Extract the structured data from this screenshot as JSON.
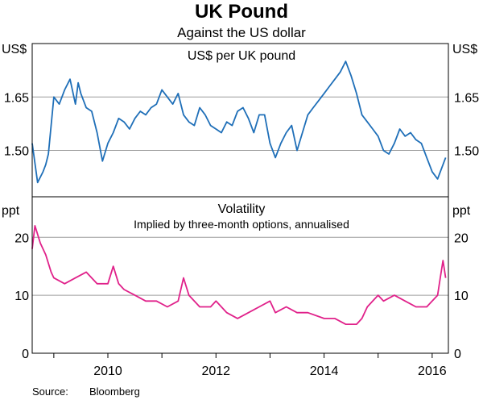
{
  "title": "UK Pound",
  "subtitle": "Against the US dollar",
  "source_label": "Source:",
  "source_value": "Bloomberg",
  "colors": {
    "top_series": "#1f6fb8",
    "bottom_series": "#e0218a",
    "grid": "#9e9e9e"
  },
  "chart_data": [
    {
      "type": "line",
      "title": "US$ per UK pound",
      "left_unit": "US$",
      "right_unit": "US$",
      "ylim": [
        1.37,
        1.8
      ],
      "yticks": [
        1.5,
        1.65
      ],
      "ytick_labels": [
        "1.50",
        "1.65"
      ],
      "gridlines": [
        1.5,
        1.65
      ],
      "xlim": [
        2008.6,
        2016.3
      ],
      "series": [
        {
          "x": [
            2008.6,
            2008.7,
            2008.8,
            2008.85,
            2008.9,
            2009.0,
            2009.1,
            2009.2,
            2009.3,
            2009.4,
            2009.45,
            2009.5,
            2009.6,
            2009.7,
            2009.8,
            2009.9,
            2010.0,
            2010.1,
            2010.2,
            2010.3,
            2010.4,
            2010.5,
            2010.6,
            2010.7,
            2010.8,
            2010.9,
            2011.0,
            2011.1,
            2011.2,
            2011.3,
            2011.4,
            2011.5,
            2011.6,
            2011.7,
            2011.8,
            2011.9,
            2012.0,
            2012.1,
            2012.2,
            2012.3,
            2012.4,
            2012.5,
            2012.6,
            2012.7,
            2012.8,
            2012.9,
            2013.0,
            2013.1,
            2013.2,
            2013.3,
            2013.4,
            2013.5,
            2013.6,
            2013.7,
            2013.8,
            2013.9,
            2014.0,
            2014.1,
            2014.2,
            2014.3,
            2014.4,
            2014.5,
            2014.6,
            2014.7,
            2014.8,
            2014.9,
            2015.0,
            2015.1,
            2015.2,
            2015.3,
            2015.4,
            2015.5,
            2015.6,
            2015.7,
            2015.8,
            2015.9,
            2016.0,
            2016.1,
            2016.2,
            2016.25
          ],
          "y": [
            1.52,
            1.41,
            1.44,
            1.46,
            1.49,
            1.65,
            1.63,
            1.67,
            1.7,
            1.63,
            1.69,
            1.66,
            1.62,
            1.61,
            1.55,
            1.47,
            1.52,
            1.55,
            1.59,
            1.58,
            1.56,
            1.59,
            1.61,
            1.6,
            1.62,
            1.63,
            1.67,
            1.65,
            1.63,
            1.66,
            1.6,
            1.58,
            1.57,
            1.62,
            1.6,
            1.57,
            1.56,
            1.55,
            1.58,
            1.57,
            1.61,
            1.62,
            1.59,
            1.55,
            1.6,
            1.6,
            1.52,
            1.48,
            1.52,
            1.55,
            1.57,
            1.5,
            1.55,
            1.6,
            1.62,
            1.64,
            1.66,
            1.68,
            1.7,
            1.72,
            1.75,
            1.71,
            1.66,
            1.6,
            1.58,
            1.56,
            1.54,
            1.5,
            1.49,
            1.52,
            1.56,
            1.54,
            1.55,
            1.53,
            1.52,
            1.48,
            1.44,
            1.42,
            1.46,
            1.48
          ]
        }
      ]
    },
    {
      "type": "line",
      "title": "Volatility",
      "subtitle": "Implied by three-month options, annualised",
      "left_unit": "ppt",
      "right_unit": "ppt",
      "ylim": [
        0,
        27
      ],
      "yticks": [
        0,
        10,
        20
      ],
      "ytick_labels": [
        "0",
        "10",
        "20"
      ],
      "gridlines": [
        10,
        20
      ],
      "xlim": [
        2008.6,
        2016.3
      ],
      "xticks": [
        2010,
        2012,
        2014,
        2016
      ],
      "xtick_labels": [
        "2010",
        "2012",
        "2014",
        "2016"
      ],
      "series": [
        {
          "x": [
            2008.6,
            2008.65,
            2008.75,
            2008.85,
            2008.95,
            2009.0,
            2009.2,
            2009.4,
            2009.6,
            2009.8,
            2010.0,
            2010.1,
            2010.2,
            2010.3,
            2010.5,
            2010.7,
            2010.9,
            2011.1,
            2011.3,
            2011.4,
            2011.5,
            2011.7,
            2011.9,
            2012.0,
            2012.2,
            2012.4,
            2012.6,
            2012.8,
            2013.0,
            2013.1,
            2013.3,
            2013.5,
            2013.7,
            2014.0,
            2014.2,
            2014.4,
            2014.6,
            2014.7,
            2014.8,
            2014.9,
            2015.0,
            2015.1,
            2015.3,
            2015.5,
            2015.7,
            2015.9,
            2016.0,
            2016.1,
            2016.15,
            2016.2,
            2016.25
          ],
          "y": [
            18,
            22,
            19,
            17,
            14,
            13,
            12,
            13,
            14,
            12,
            12,
            15,
            12,
            11,
            10,
            9,
            9,
            8,
            9,
            13,
            10,
            8,
            8,
            9,
            7,
            6,
            7,
            8,
            9,
            7,
            8,
            7,
            7,
            6,
            6,
            5,
            5,
            6,
            8,
            9,
            10,
            9,
            10,
            9,
            8,
            8,
            9,
            10,
            13,
            16,
            13
          ]
        }
      ]
    }
  ]
}
